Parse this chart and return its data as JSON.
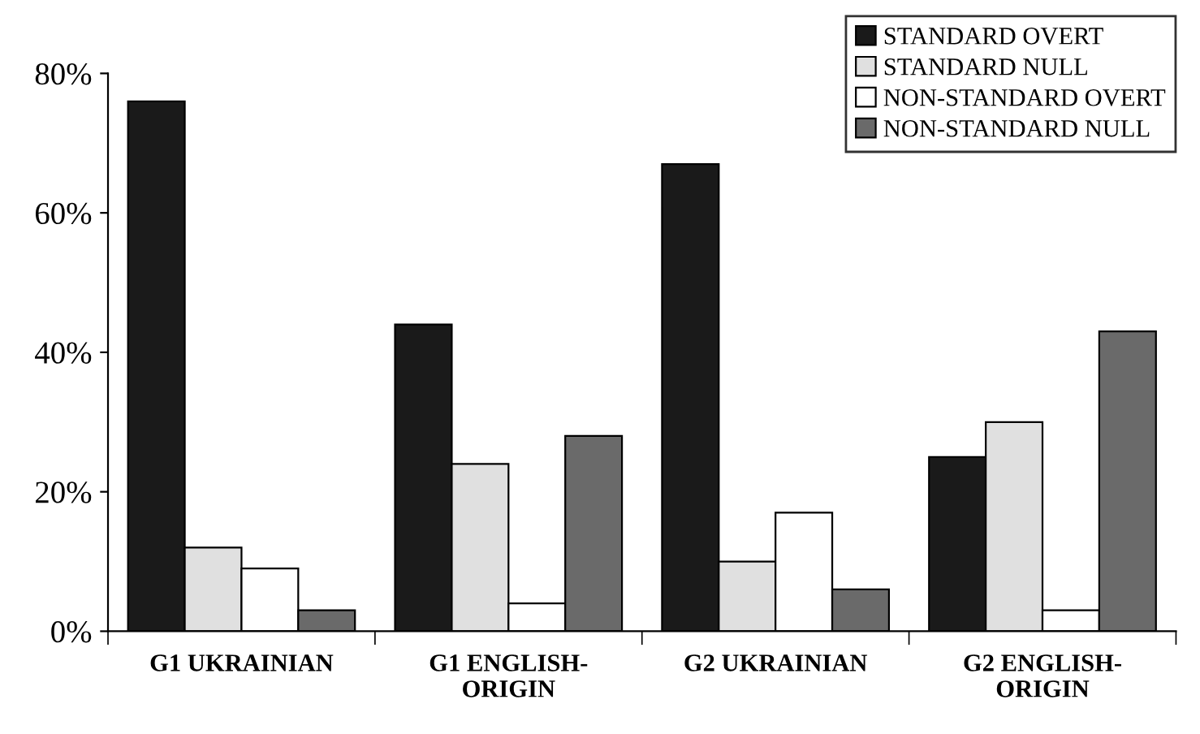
{
  "chart_data": {
    "type": "bar",
    "categories": [
      "G1 UKRAINIAN",
      "G1 ENGLISH-\nORIGIN",
      "G2 UKRAINIAN",
      "G2 ENGLISH-\nORIGIN"
    ],
    "series": [
      {
        "name": "STANDARD OVERT",
        "color": "#1a1a1a",
        "values": [
          76,
          44,
          67,
          25
        ]
      },
      {
        "name": "STANDARD NULL",
        "color": "#e0e0e0",
        "values": [
          12,
          24,
          10,
          30
        ]
      },
      {
        "name": "NON-STANDARD OVERT",
        "color": "#ffffff",
        "values": [
          9,
          4,
          17,
          3
        ]
      },
      {
        "name": "NON-STANDARD NULL",
        "color": "#6a6a6a",
        "values": [
          3,
          28,
          6,
          43
        ]
      }
    ],
    "ylim": [
      0,
      80
    ],
    "yticks": [
      {
        "value": 0,
        "label": "0%"
      },
      {
        "value": 20,
        "label": "20%"
      },
      {
        "value": 40,
        "label": "40%"
      },
      {
        "value": 60,
        "label": "60%"
      },
      {
        "value": 80,
        "label": "80%"
      }
    ],
    "grid": false,
    "legend": "top right"
  }
}
